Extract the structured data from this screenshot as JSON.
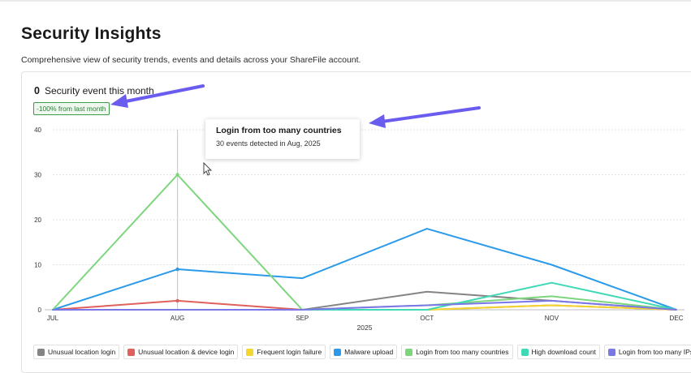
{
  "page": {
    "title": "Security Insights",
    "subtitle": "Comprehensive view of security trends, events and details across your ShareFile account."
  },
  "summary": {
    "count": "0",
    "label": "Security event this month",
    "change_badge": "-100% from last month"
  },
  "tooltip": {
    "title": "Login from too many countries",
    "detail": "30 events detected in Aug, 2025"
  },
  "colors": {
    "annotation_arrow": "#6b5cf0",
    "hover_guide": "#cccccc"
  },
  "chart_data": {
    "type": "line",
    "x": [
      "JUL",
      "AUG",
      "SEP",
      "OCT",
      "NOV",
      "DEC"
    ],
    "xlabel": "2025",
    "ylabel": "",
    "ylim": [
      0,
      40
    ],
    "yticks": [
      0,
      10,
      20,
      30,
      40
    ],
    "grid": true,
    "legend_position": "bottom",
    "hover_index": 1,
    "series": [
      {
        "name": "Unusual location login",
        "color": "#848484",
        "values": [
          0,
          0,
          0,
          4,
          2,
          0
        ]
      },
      {
        "name": "Unusual location & device login",
        "color": "#e0605b",
        "values": [
          0,
          2,
          0,
          0,
          1,
          0
        ]
      },
      {
        "name": "Frequent login failure",
        "color": "#f3d62f",
        "values": [
          0,
          0,
          0,
          0,
          1,
          0
        ]
      },
      {
        "name": "Malware upload",
        "color": "#2b9ae8",
        "values": [
          0,
          9,
          7,
          18,
          10,
          0
        ]
      },
      {
        "name": "Login from too many countries",
        "color": "#7dd67d",
        "values": [
          0,
          30,
          0,
          1,
          3,
          0
        ]
      },
      {
        "name": "High download count",
        "color": "#3fd9b6",
        "values": [
          0,
          0,
          0,
          0,
          6,
          0
        ]
      },
      {
        "name": "Login from too many IPs",
        "color": "#7a78e8",
        "values": [
          0,
          0,
          0,
          1,
          2,
          0
        ]
      }
    ]
  }
}
